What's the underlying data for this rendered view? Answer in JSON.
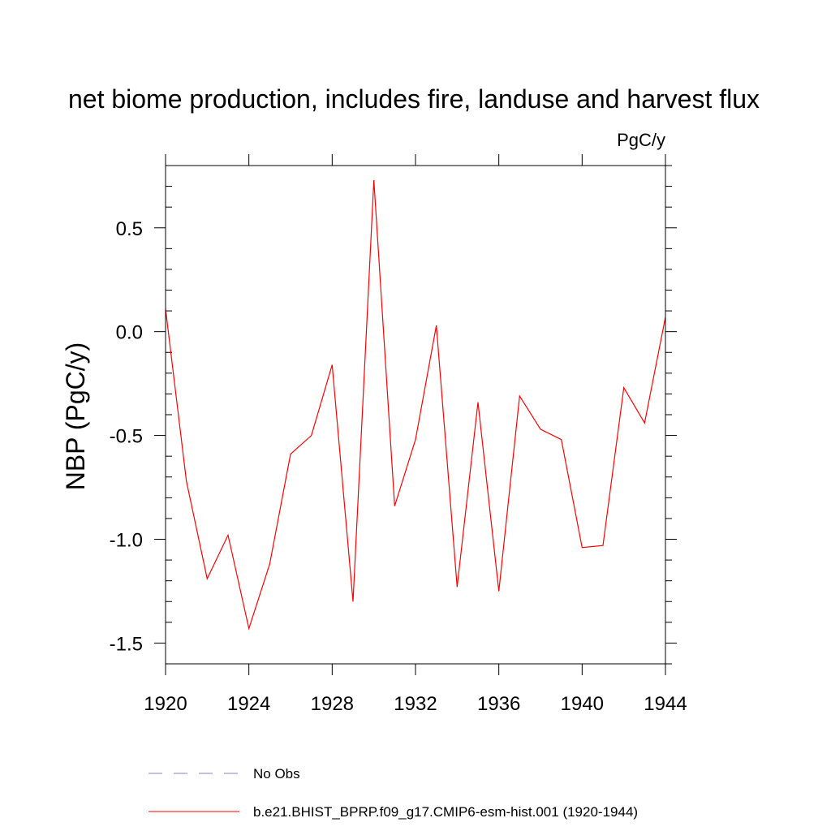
{
  "chart_data": {
    "type": "line",
    "title": "net biome production, includes fire, landuse and harvest flux",
    "units": "PgC/y",
    "ylabel": "NBP  (PgC/y)",
    "xlabel": "",
    "xlim": [
      1920,
      1944
    ],
    "ylim": [
      -1.6,
      0.8
    ],
    "x_ticks": [
      1920,
      1924,
      1928,
      1932,
      1936,
      1940,
      1944
    ],
    "x_tick_labels": [
      "1920",
      "1924",
      "1928",
      "1932",
      "1936",
      "1940",
      "1944"
    ],
    "y_ticks": [
      0.5,
      0.0,
      -0.5,
      -1.0,
      -1.5
    ],
    "y_tick_labels": [
      "0.5",
      "0.0",
      "-0.5",
      "-1.0",
      "-1.5"
    ],
    "series": [
      {
        "name": "b.e21.BHIST_BPRP.f09_g17.CMIP6-esm-hist.001 (1920-1944)",
        "color": "#ff0000",
        "style": "solid",
        "x": [
          1920,
          1921,
          1922,
          1923,
          1924,
          1925,
          1926,
          1927,
          1928,
          1929,
          1930,
          1931,
          1932,
          1933,
          1934,
          1935,
          1936,
          1937,
          1938,
          1939,
          1940,
          1941,
          1942,
          1943,
          1944
        ],
        "values": [
          0.11,
          -0.72,
          -1.19,
          -0.98,
          -1.43,
          -1.12,
          -0.59,
          -0.5,
          -0.16,
          -1.3,
          0.73,
          -0.84,
          -0.52,
          0.03,
          -1.23,
          -0.34,
          -1.25,
          -0.31,
          -0.47,
          -0.52,
          -1.04,
          -1.03,
          -0.27,
          -0.44,
          0.07
        ]
      }
    ],
    "legend": {
      "placement": "bottom",
      "entries": [
        {
          "label": "No Obs",
          "color": "#8080c0",
          "style": "dashed"
        },
        {
          "label": "b.e21.BHIST_BPRP.f09_g17.CMIP6-esm-hist.001 (1920-1944)",
          "color": "#ff0000",
          "style": "solid"
        }
      ]
    }
  }
}
